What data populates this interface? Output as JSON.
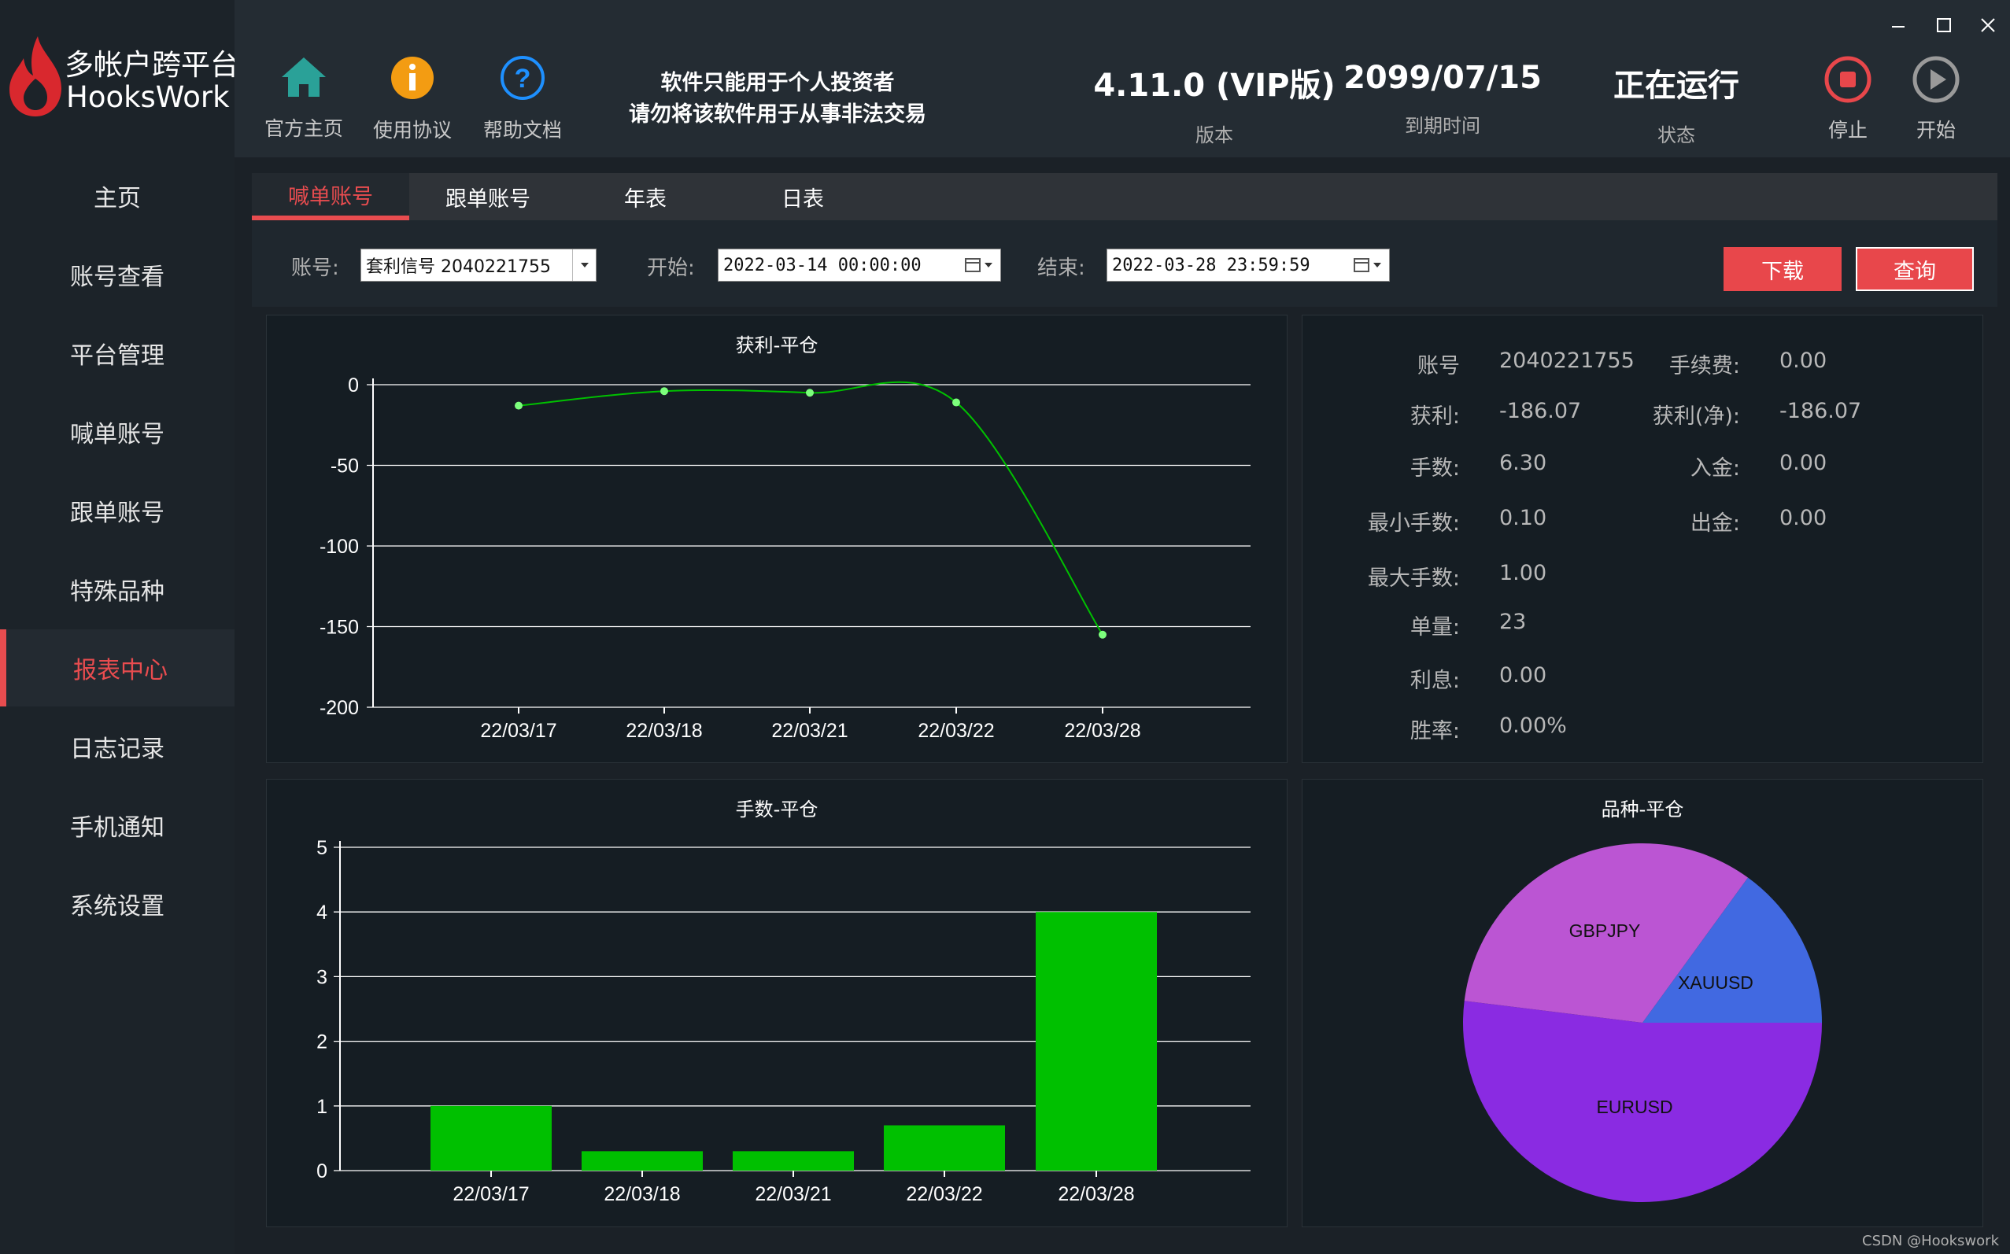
{
  "app": {
    "title_cn": "多帐户跨平台",
    "title_en": "HooksWork"
  },
  "sidebar": {
    "items": [
      {
        "label": "主页"
      },
      {
        "label": "账号查看"
      },
      {
        "label": "平台管理"
      },
      {
        "label": "喊单账号"
      },
      {
        "label": "跟单账号"
      },
      {
        "label": "特殊品种"
      },
      {
        "label": "报表中心",
        "active": true
      },
      {
        "label": "日志记录"
      },
      {
        "label": "手机通知"
      },
      {
        "label": "系统设置"
      }
    ]
  },
  "header": {
    "home_label": "官方主页",
    "agreement_label": "使用协议",
    "help_label": "帮助文档",
    "notice_line1": "软件只能用于个人投资者",
    "notice_line2": "请勿将该软件用于从事非法交易",
    "version_value": "4.11.0 (VIP版)",
    "version_label": "版本",
    "expire_value": "2099/07/15",
    "expire_label": "到期时间",
    "status_value": "正在运行",
    "status_label": "状态",
    "stop_label": "停止",
    "start_label": "开始"
  },
  "tabs": [
    {
      "label": "喊单账号",
      "active": true
    },
    {
      "label": "跟单账号"
    },
    {
      "label": "年表"
    },
    {
      "label": "日表"
    }
  ],
  "filter": {
    "account_label": "账号:",
    "account_value": "套利信号  2040221755",
    "start_label": "开始:",
    "start_value": "2022-03-14 00:00:00",
    "end_label": "结束:",
    "end_value": "2022-03-28 23:59:59",
    "download_label": "下载",
    "query_label": "查询"
  },
  "info": {
    "account_label": "账号",
    "account_value": "2040221755",
    "fee_label": "手续费:",
    "fee_value": "0.00",
    "profit_label": "获利:",
    "profit_value": "-186.07",
    "net_profit_label": "获利(净):",
    "net_profit_value": "-186.07",
    "lots_label": "手数:",
    "lots_value": "6.30",
    "deposit_label": "入金:",
    "deposit_value": "0.00",
    "min_lots_label": "最小手数:",
    "min_lots_value": "0.10",
    "withdraw_label": "出金:",
    "withdraw_value": "0.00",
    "max_lots_label": "最大手数:",
    "max_lots_value": "1.00",
    "orders_label": "单量:",
    "orders_value": "23",
    "interest_label": "利息:",
    "interest_value": "0.00",
    "winrate_label": "胜率:",
    "winrate_value": "0.00%"
  },
  "colors": {
    "accent": "#e84c4f",
    "line": "#00c000",
    "bar": "#00c000",
    "pie_gbpjpy": "#bb55d3",
    "pie_xauusd": "#4169e1",
    "pie_eurusd": "#8a2be2"
  },
  "chart_data": [
    {
      "type": "line",
      "title": "获利-平仓",
      "categories": [
        "22/03/17",
        "22/03/18",
        "22/03/21",
        "22/03/22",
        "22/03/28"
      ],
      "values": [
        -13,
        -4,
        -5,
        -11,
        -155
      ],
      "yticks": [
        "0",
        "-50",
        "-100",
        "-150",
        "-200"
      ],
      "ylim": [
        -200,
        0
      ],
      "grid": true
    },
    {
      "type": "bar",
      "title": "手数-平仓",
      "categories": [
        "22/03/17",
        "22/03/18",
        "22/03/21",
        "22/03/22",
        "22/03/28"
      ],
      "values": [
        1.0,
        0.3,
        0.3,
        0.7,
        4.0
      ],
      "yticks": [
        "0",
        "1",
        "2",
        "3",
        "4",
        "5"
      ],
      "ylim": [
        0,
        5
      ],
      "grid": true
    },
    {
      "type": "pie",
      "title": "品种-平仓",
      "labels": [
        "XAUUSD",
        "EURUSD",
        "GBPJPY"
      ],
      "values": [
        15,
        52,
        33
      ]
    }
  ],
  "watermark": "CSDN @Hookswork"
}
